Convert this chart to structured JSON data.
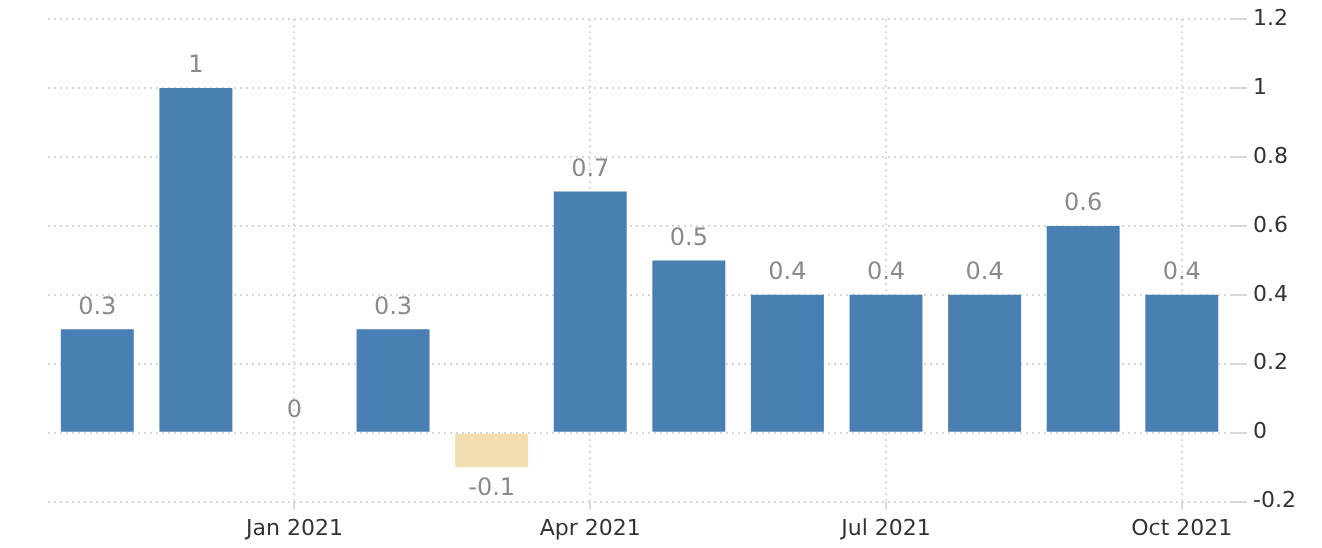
{
  "chart_data": {
    "type": "bar",
    "categories": [
      null,
      null,
      "Jan 2021",
      null,
      null,
      "Apr 2021",
      null,
      null,
      "Jul 2021",
      null,
      null,
      "Oct 2021"
    ],
    "values": [
      0.3,
      1,
      0,
      0.3,
      -0.1,
      0.7,
      0.5,
      0.4,
      0.4,
      0.4,
      0.6,
      0.4
    ],
    "colors": [
      "#4a7fb3",
      "#4a7fb3",
      "#4a7fb3",
      "#4a7fb3",
      "#f3deb0",
      "#4a7fb3",
      "#4a7fb3",
      "#4a7fb3",
      "#4a7fb3",
      "#4a7fb3",
      "#4a7fb3",
      "#4a7fb3"
    ],
    "ylim": [
      -0.2,
      1.2
    ],
    "yticks": [
      -0.2,
      0,
      0.2,
      0.4,
      0.6,
      0.8,
      1,
      1.2
    ],
    "grid": true,
    "data_labels": true
  }
}
